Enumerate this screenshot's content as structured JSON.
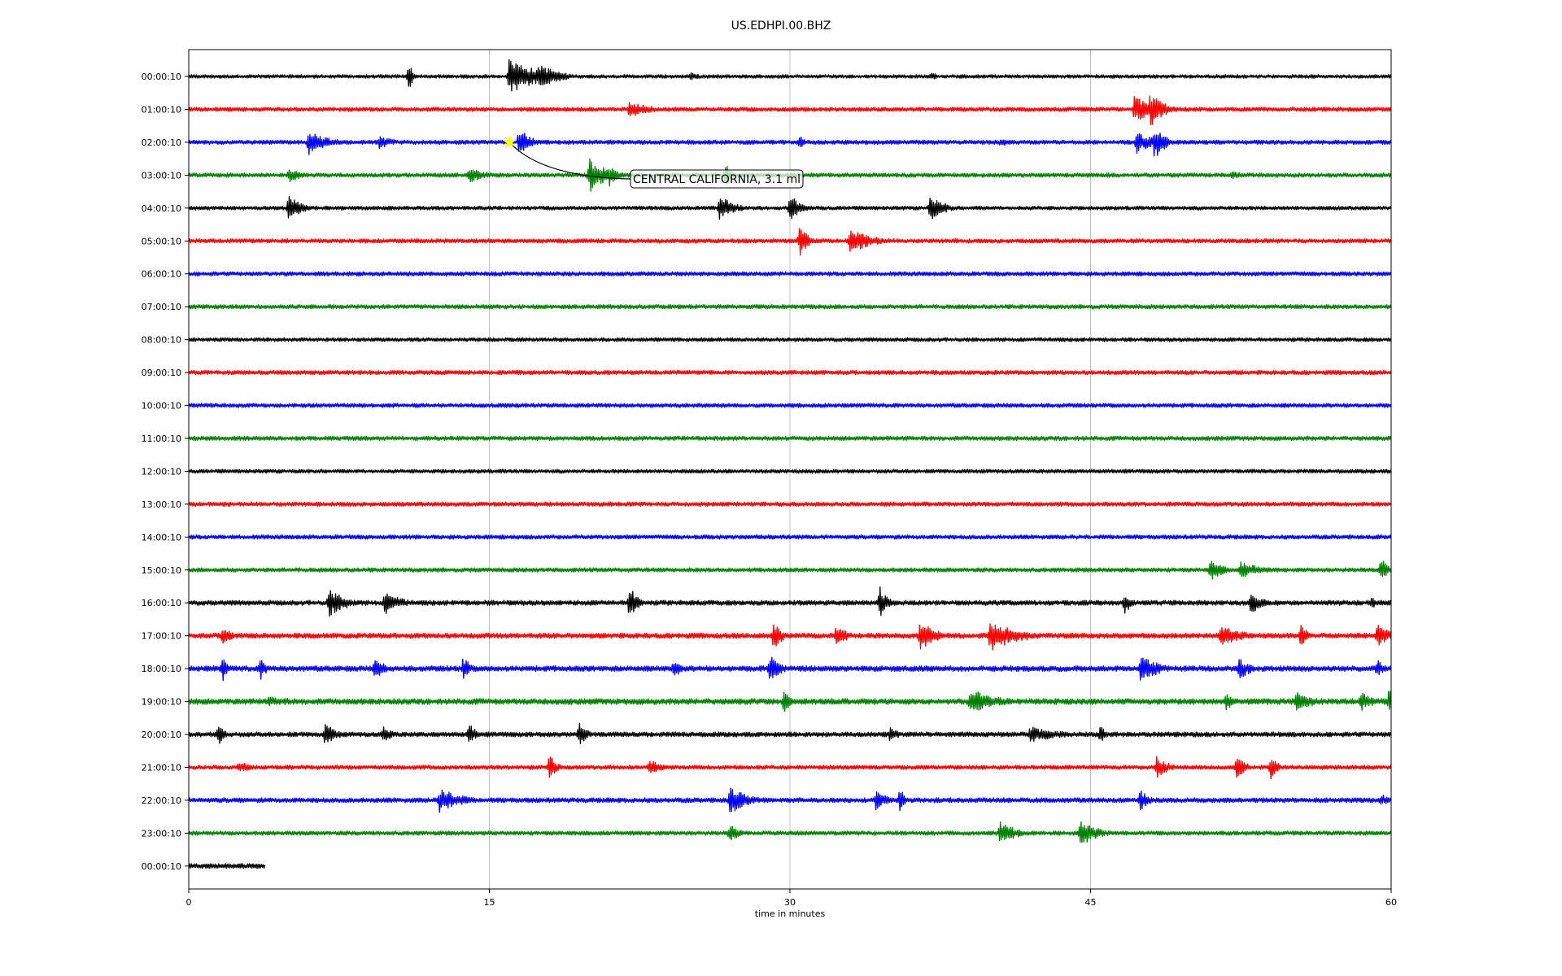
{
  "chart_data": {
    "type": "line",
    "title": "US.EDHPI.00.BHZ",
    "xlabel": "time in minutes",
    "ylabel": "",
    "xlim": [
      0,
      60
    ],
    "x_ticks": [
      0,
      15,
      30,
      45,
      60
    ],
    "x_tick_labels": [
      "0",
      "15",
      "30",
      "45",
      "60"
    ],
    "grid": "vertical",
    "row_colors": [
      "#000000",
      "#ff0000",
      "#0000ff",
      "#008000"
    ],
    "rows": [
      {
        "label": "00:00:10",
        "end_min": 60,
        "noise": 2.2,
        "events": [
          {
            "t": 11,
            "amp": 18,
            "dur": 0.2
          },
          {
            "t": 16,
            "amp": 24,
            "dur": 2.5
          },
          {
            "t": 17.5,
            "amp": 18,
            "dur": 1.5
          },
          {
            "t": 25,
            "amp": 5,
            "dur": 1
          },
          {
            "t": 37,
            "amp": 5,
            "dur": 1
          }
        ]
      },
      {
        "label": "01:00:10",
        "end_min": 60,
        "noise": 2.6,
        "events": [
          {
            "t": 22,
            "amp": 10,
            "dur": 2
          },
          {
            "t": 47.2,
            "amp": 18,
            "dur": 1.5
          },
          {
            "t": 48,
            "amp": 24,
            "dur": 1
          }
        ]
      },
      {
        "label": "02:00:10",
        "end_min": 60,
        "noise": 2.6,
        "events": [
          {
            "t": 6,
            "amp": 16,
            "dur": 1.5
          },
          {
            "t": 9.5,
            "amp": 8,
            "dur": 1.5
          },
          {
            "t": 16.5,
            "amp": 20,
            "dur": 0.8
          },
          {
            "t": 30.5,
            "amp": 8,
            "dur": 0.4
          },
          {
            "t": 40.5,
            "amp": 6,
            "dur": 1
          },
          {
            "t": 47.3,
            "amp": 14,
            "dur": 1.5
          },
          {
            "t": 48.2,
            "amp": 22,
            "dur": 0.8
          }
        ]
      },
      {
        "label": "03:00:10",
        "end_min": 60,
        "noise": 2.6,
        "events": [
          {
            "t": 5,
            "amp": 10,
            "dur": 1
          },
          {
            "t": 14,
            "amp": 10,
            "dur": 1.5
          },
          {
            "t": 20,
            "amp": 22,
            "dur": 1.5
          },
          {
            "t": 21,
            "amp": 14,
            "dur": 0.6
          },
          {
            "t": 26.8,
            "amp": 16,
            "dur": 0.3
          },
          {
            "t": 52,
            "amp": 5,
            "dur": 2
          }
        ]
      },
      {
        "label": "04:00:10",
        "end_min": 60,
        "noise": 2.4,
        "events": [
          {
            "t": 5,
            "amp": 16,
            "dur": 1
          },
          {
            "t": 26.5,
            "amp": 16,
            "dur": 1.2
          },
          {
            "t": 30,
            "amp": 18,
            "dur": 0.8
          },
          {
            "t": 37,
            "amp": 16,
            "dur": 1.2
          }
        ]
      },
      {
        "label": "05:00:10",
        "end_min": 60,
        "noise": 2.6,
        "events": [
          {
            "t": 30.5,
            "amp": 20,
            "dur": 0.6
          },
          {
            "t": 33,
            "amp": 16,
            "dur": 2
          }
        ]
      },
      {
        "label": "06:00:10",
        "end_min": 60,
        "noise": 2.6,
        "events": []
      },
      {
        "label": "07:00:10",
        "end_min": 60,
        "noise": 2.6,
        "events": []
      },
      {
        "label": "08:00:10",
        "end_min": 60,
        "noise": 2.4,
        "events": []
      },
      {
        "label": "09:00:10",
        "end_min": 60,
        "noise": 2.6,
        "events": []
      },
      {
        "label": "10:00:10",
        "end_min": 60,
        "noise": 2.6,
        "events": []
      },
      {
        "label": "11:00:10",
        "end_min": 60,
        "noise": 2.6,
        "events": []
      },
      {
        "label": "12:00:10",
        "end_min": 60,
        "noise": 2.4,
        "events": []
      },
      {
        "label": "13:00:10",
        "end_min": 60,
        "noise": 2.6,
        "events": []
      },
      {
        "label": "14:00:10",
        "end_min": 60,
        "noise": 2.6,
        "events": []
      },
      {
        "label": "15:00:10",
        "end_min": 60,
        "noise": 2.6,
        "events": [
          {
            "t": 51,
            "amp": 14,
            "dur": 1
          },
          {
            "t": 52.5,
            "amp": 10,
            "dur": 2
          },
          {
            "t": 59.5,
            "amp": 16,
            "dur": 0.5
          }
        ]
      },
      {
        "label": "16:00:10",
        "end_min": 60,
        "noise": 3.0,
        "events": [
          {
            "t": 7,
            "amp": 18,
            "dur": 1.5
          },
          {
            "t": 9.8,
            "amp": 14,
            "dur": 1.5
          },
          {
            "t": 22,
            "amp": 24,
            "dur": 0.5
          },
          {
            "t": 34.5,
            "amp": 20,
            "dur": 0.5
          },
          {
            "t": 46.7,
            "amp": 18,
            "dur": 0.3
          },
          {
            "t": 53,
            "amp": 14,
            "dur": 1
          },
          {
            "t": 59,
            "amp": 8,
            "dur": 0.5
          }
        ]
      },
      {
        "label": "17:00:10",
        "end_min": 60,
        "noise": 3.2,
        "events": [
          {
            "t": 1.7,
            "amp": 16,
            "dur": 0.5
          },
          {
            "t": 29.2,
            "amp": 18,
            "dur": 0.6
          },
          {
            "t": 32.3,
            "amp": 14,
            "dur": 1
          },
          {
            "t": 36.5,
            "amp": 18,
            "dur": 1.5
          },
          {
            "t": 40,
            "amp": 20,
            "dur": 2.5
          },
          {
            "t": 51.5,
            "amp": 14,
            "dur": 2
          },
          {
            "t": 55.5,
            "amp": 16,
            "dur": 0.5
          },
          {
            "t": 59.3,
            "amp": 16,
            "dur": 1
          }
        ]
      },
      {
        "label": "18:00:10",
        "end_min": 60,
        "noise": 3.4,
        "events": [
          {
            "t": 1.7,
            "amp": 16,
            "dur": 0.3
          },
          {
            "t": 3.6,
            "amp": 14,
            "dur": 0.4
          },
          {
            "t": 9.3,
            "amp": 14,
            "dur": 0.8
          },
          {
            "t": 13.7,
            "amp": 16,
            "dur": 0.5
          },
          {
            "t": 24.2,
            "amp": 10,
            "dur": 1
          },
          {
            "t": 29,
            "amp": 18,
            "dur": 0.8
          },
          {
            "t": 47.5,
            "amp": 18,
            "dur": 1.5
          },
          {
            "t": 52.4,
            "amp": 14,
            "dur": 1
          },
          {
            "t": 59.3,
            "amp": 12,
            "dur": 0.5
          }
        ]
      },
      {
        "label": "19:00:10",
        "end_min": 60,
        "noise": 3.6,
        "events": [
          {
            "t": 4,
            "amp": 6,
            "dur": 4
          },
          {
            "t": 29.7,
            "amp": 14,
            "dur": 0.5
          },
          {
            "t": 39,
            "amp": 16,
            "dur": 2.5
          },
          {
            "t": 51.8,
            "amp": 14,
            "dur": 0.5
          },
          {
            "t": 55.3,
            "amp": 14,
            "dur": 1.5
          },
          {
            "t": 58.5,
            "amp": 12,
            "dur": 1
          },
          {
            "t": 59.9,
            "amp": 18,
            "dur": 0.2
          }
        ]
      },
      {
        "label": "20:00:10",
        "end_min": 60,
        "noise": 3.0,
        "events": [
          {
            "t": 1.5,
            "amp": 18,
            "dur": 0.3
          },
          {
            "t": 6.8,
            "amp": 14,
            "dur": 1
          },
          {
            "t": 9.7,
            "amp": 10,
            "dur": 1
          },
          {
            "t": 14,
            "amp": 14,
            "dur": 0.5
          },
          {
            "t": 19.5,
            "amp": 16,
            "dur": 0.5
          },
          {
            "t": 35,
            "amp": 12,
            "dur": 0.5
          },
          {
            "t": 42,
            "amp": 10,
            "dur": 3
          },
          {
            "t": 45.5,
            "amp": 12,
            "dur": 0.4
          }
        ]
      },
      {
        "label": "21:00:10",
        "end_min": 60,
        "noise": 2.6,
        "events": [
          {
            "t": 2.5,
            "amp": 8,
            "dur": 1
          },
          {
            "t": 18,
            "amp": 16,
            "dur": 0.5
          },
          {
            "t": 23,
            "amp": 10,
            "dur": 1
          },
          {
            "t": 48.3,
            "amp": 14,
            "dur": 1
          },
          {
            "t": 52.3,
            "amp": 16,
            "dur": 0.6
          },
          {
            "t": 54,
            "amp": 14,
            "dur": 0.5
          }
        ]
      },
      {
        "label": "22:00:10",
        "end_min": 60,
        "noise": 3.0,
        "events": [
          {
            "t": 12.5,
            "amp": 16,
            "dur": 2
          },
          {
            "t": 27,
            "amp": 18,
            "dur": 1.5
          },
          {
            "t": 34.3,
            "amp": 14,
            "dur": 0.8
          },
          {
            "t": 35.5,
            "amp": 16,
            "dur": 0.3
          },
          {
            "t": 47.5,
            "amp": 14,
            "dur": 0.6
          },
          {
            "t": 59.5,
            "amp": 10,
            "dur": 0.5
          }
        ]
      },
      {
        "label": "23:00:10",
        "end_min": 60,
        "noise": 2.6,
        "events": [
          {
            "t": 27,
            "amp": 12,
            "dur": 0.8
          },
          {
            "t": 40.5,
            "amp": 14,
            "dur": 1.5
          },
          {
            "t": 44.5,
            "amp": 16,
            "dur": 1.5
          }
        ]
      },
      {
        "label": "00:00:10",
        "end_min": 3.8,
        "noise": 3.0,
        "events": []
      }
    ],
    "annotations": [
      {
        "text": "CENTRAL CALIFORNIA, 3.1 ml",
        "row": 2,
        "t": 16.0,
        "marker": "star",
        "marker_color": "#ffff00"
      }
    ]
  }
}
